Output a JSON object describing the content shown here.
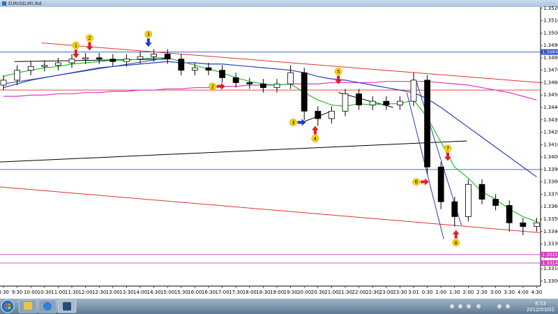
{
  "window": {
    "title": "EURUSD,M5 Bid"
  },
  "chart_data": {
    "type": "candlestick",
    "categories": [
      "8:30",
      "9:30",
      "10:00",
      "10:30",
      "11:00",
      "11:30",
      "12:00",
      "12:30",
      "13:00",
      "13:30",
      "14:00",
      "14:30",
      "15:00",
      "15:30",
      "16:00",
      "16:30",
      "17:00",
      "17:30",
      "18:00",
      "18:30",
      "19:00",
      "19:30",
      "20:00",
      "20:30",
      "21:00",
      "21:30",
      "22:00",
      "22:30",
      "23:00",
      "23:30",
      "3:01",
      "0:30",
      "1:00",
      "1:30",
      "2:00",
      "2:30",
      "3:00",
      "3:30",
      "4:00",
      "4:30"
    ],
    "open": [
      1.3458,
      1.3462,
      1.347,
      1.3473,
      1.3474,
      1.3476,
      1.3479,
      1.348,
      1.3479,
      1.3477,
      1.3479,
      1.3481,
      1.3483,
      1.3479,
      1.347,
      1.3472,
      1.347,
      1.3464,
      1.346,
      1.3459,
      1.3456,
      1.3459,
      1.3468,
      1.3437,
      1.3431,
      1.3437,
      1.3451,
      1.3442,
      1.3445,
      1.3442,
      1.3445,
      1.3462,
      1.3392,
      1.3364,
      1.3352,
      1.3378,
      1.3366,
      1.3361,
      1.3347,
      1.3344
    ],
    "high": [
      1.3466,
      1.3474,
      1.3477,
      1.3478,
      1.348,
      1.3483,
      1.3484,
      1.3484,
      1.3483,
      1.3483,
      1.3485,
      1.3487,
      1.3487,
      1.3483,
      1.3476,
      1.3476,
      1.3474,
      1.3468,
      1.3464,
      1.3463,
      1.3463,
      1.3474,
      1.3472,
      1.3441,
      1.3441,
      1.3455,
      1.3455,
      1.3449,
      1.3449,
      1.3449,
      1.3468,
      1.3466,
      1.3396,
      1.3368,
      1.3382,
      1.3382,
      1.337,
      1.3365,
      1.3351,
      1.3351
    ],
    "low": [
      1.3454,
      1.3458,
      1.3466,
      1.3469,
      1.347,
      1.3472,
      1.3475,
      1.3475,
      1.3473,
      1.3473,
      1.3475,
      1.3477,
      1.3475,
      1.3466,
      1.3466,
      1.3466,
      1.346,
      1.3456,
      1.3455,
      1.3452,
      1.3452,
      1.3455,
      1.343,
      1.3425,
      1.3427,
      1.3433,
      1.3438,
      1.3438,
      1.3438,
      1.3438,
      1.3441,
      1.3386,
      1.3358,
      1.3344,
      1.3348,
      1.3362,
      1.3357,
      1.334,
      1.3337,
      1.334
    ],
    "close": [
      1.3462,
      1.347,
      1.3473,
      1.3474,
      1.3476,
      1.3479,
      1.348,
      1.3479,
      1.3477,
      1.3479,
      1.3481,
      1.3483,
      1.3479,
      1.347,
      1.3472,
      1.347,
      1.3464,
      1.346,
      1.3459,
      1.3456,
      1.3459,
      1.3468,
      1.3437,
      1.3431,
      1.3437,
      1.3451,
      1.3442,
      1.3445,
      1.3442,
      1.3445,
      1.3462,
      1.3392,
      1.3364,
      1.3352,
      1.3378,
      1.3366,
      1.3361,
      1.3347,
      1.3344,
      1.3347
    ],
    "series": [
      {
        "color": "#d63cc0",
        "values": [
          1.3449,
          1.3449,
          1.345,
          1.345,
          1.3451,
          1.3451,
          1.3452,
          1.3452,
          1.3453,
          1.3453,
          1.3454,
          1.3454,
          1.3455,
          1.3455,
          1.3456,
          1.3456,
          1.3457,
          1.3457,
          1.3458,
          1.3458,
          1.3458,
          1.3459,
          1.3459,
          1.3459,
          1.346,
          1.346,
          1.346,
          1.346,
          1.3461,
          1.3461,
          1.3461,
          1.3461,
          1.346,
          1.3459,
          1.3458,
          1.3456,
          1.3454,
          1.3452,
          1.3449,
          1.3446
        ]
      },
      {
        "color": "#2a3fb8",
        "values": [
          1.3456,
          1.3459,
          1.3462,
          1.3464,
          1.3466,
          1.3468,
          1.347,
          1.3472,
          1.3473,
          1.3474,
          1.3475,
          1.3476,
          1.3477,
          1.3476,
          1.3476,
          1.3475,
          1.3475,
          1.3474,
          1.3473,
          1.3472,
          1.3471,
          1.347,
          1.3468,
          1.3465,
          1.3463,
          1.3462,
          1.346,
          1.3458,
          1.3456,
          1.3454,
          1.3452,
          1.3447,
          1.344,
          1.3432,
          1.3424,
          1.3416,
          1.3408,
          1.34,
          1.3392,
          1.3384
        ]
      },
      {
        "color": "#22c22a",
        "values": [
          1.3465,
          1.3468,
          1.347,
          1.3472,
          1.3473,
          1.3475,
          1.3476,
          1.3477,
          1.3478,
          1.3478,
          1.3479,
          1.348,
          1.348,
          1.3477,
          1.3474,
          1.3471,
          1.3468,
          1.3464,
          1.3461,
          1.3459,
          1.3458,
          1.3459,
          1.3452,
          1.3446,
          1.3442,
          1.3441,
          1.3443,
          1.3442,
          1.3443,
          1.3443,
          1.3446,
          1.3432,
          1.3412,
          1.3392,
          1.3383,
          1.3372,
          1.3366,
          1.3358,
          1.3352,
          1.3348
        ]
      }
    ],
    "hlines": [
      {
        "value": 1.34847,
        "label": "1.34847",
        "color": "#3050c8"
      },
      {
        "value": 1.3454,
        "color": "#e03030"
      },
      {
        "value": 1.339,
        "color": "#3050c8"
      },
      {
        "value": 1.33214,
        "label": "1.33214",
        "color": "#d63cc0"
      },
      {
        "value": 1.33146,
        "label": "1.33146",
        "color": "#d63cc0"
      }
    ],
    "trendlines": [
      {
        "x": [
          2.8,
          39.3
        ],
        "y": [
          1.3492,
          1.346
        ],
        "color": "#e03030"
      },
      {
        "x": [
          -0.3,
          39.3
        ],
        "y": [
          1.3376,
          1.3339
        ],
        "color": "#e03030"
      },
      {
        "x": [
          -0.3,
          33.9
        ],
        "y": [
          1.3396,
          1.3413
        ],
        "color": "#000000"
      },
      {
        "x": [
          0.8,
          12.0
        ],
        "y": [
          1.3477,
          1.3479
        ],
        "color": "#000000"
      },
      {
        "x": [
          0.0,
          12.0
        ],
        "y": [
          1.3459,
          1.348
        ],
        "color": "#2a3fb8"
      },
      {
        "x": [
          24.5,
          28.5
        ],
        "y": [
          1.3452,
          1.344
        ],
        "color": "#000000"
      },
      {
        "x": [
          21.6,
          24.0
        ],
        "y": [
          1.3427,
          1.3437
        ],
        "color": "#000000"
      },
      {
        "x": [
          29.5,
          32.2
        ],
        "y": [
          1.3452,
          1.3334
        ],
        "color": "#2a3fb8"
      },
      {
        "x": [
          30.2,
          33.5
        ],
        "y": [
          1.3461,
          1.3345
        ],
        "color": "#2a3fb8"
      }
    ],
    "markers": [
      {
        "label": "1",
        "x": 5.3,
        "y": 1.349,
        "dir": "down",
        "color": "#e02020"
      },
      {
        "label": "2",
        "x": 6.3,
        "y": 1.3496,
        "dir": "down",
        "color": "#e02020"
      },
      {
        "label": "3",
        "x": 10.6,
        "y": 1.3499,
        "dir": "down",
        "color": "#1c3ad0"
      },
      {
        "label": "2",
        "x": 15.3,
        "y": 1.3457,
        "dir": "right",
        "color": "#e02020"
      },
      {
        "label": "3",
        "x": 21.2,
        "y": 1.3428,
        "dir": "right",
        "color": "#1c3ad0"
      },
      {
        "label": "4",
        "x": 22.8,
        "y": 1.3415,
        "dir": "up",
        "color": "#e02020"
      },
      {
        "label": "5",
        "x": 24.5,
        "y": 1.3469,
        "dir": "down",
        "color": "#e02020"
      },
      {
        "label": "6",
        "x": 30.2,
        "y": 1.338,
        "dir": "right",
        "color": "#e02020"
      },
      {
        "label": "7",
        "x": 32.5,
        "y": 1.3407,
        "dir": "down",
        "color": "#e02020"
      },
      {
        "label": "8",
        "x": 33.1,
        "y": 1.3331,
        "dir": "up",
        "color": "#e02020"
      }
    ],
    "ylim": [
      1.3296,
      1.3521
    ],
    "yticks": [
      {
        "value": 1.33,
        "label": "1.3300"
      },
      {
        "value": 1.331,
        "label": "1.3310"
      },
      {
        "value": 1.332,
        "label": "1.3320"
      },
      {
        "value": 1.333,
        "label": "1.3330"
      },
      {
        "value": 1.334,
        "label": "1.3340"
      },
      {
        "value": 1.335,
        "label": "1.3350"
      },
      {
        "value": 1.336,
        "label": "1.3360"
      },
      {
        "value": 1.337,
        "label": "1.3370"
      },
      {
        "value": 1.338,
        "label": "1.3380"
      },
      {
        "value": 1.339,
        "label": "1.3390"
      },
      {
        "value": 1.34,
        "label": "1.3400"
      },
      {
        "value": 1.341,
        "label": "1.3410"
      },
      {
        "value": 1.342,
        "label": "1.3420"
      },
      {
        "value": 1.343,
        "label": "1.3430"
      },
      {
        "value": 1.344,
        "label": "1.3440"
      },
      {
        "value": 1.345,
        "label": "1.3450"
      },
      {
        "value": 1.346,
        "label": "1.3460"
      },
      {
        "value": 1.347,
        "label": "1.3470"
      },
      {
        "value": 1.348,
        "label": "1.3480"
      },
      {
        "value": 1.349,
        "label": "1.3490"
      },
      {
        "value": 1.35,
        "label": "1.3500"
      },
      {
        "value": 1.351,
        "label": "1.3510"
      },
      {
        "value": 1.352,
        "label": "1.3520"
      }
    ],
    "up_color": "#ffffff",
    "down_color": "#000000"
  },
  "taskbar": {
    "time": "8:53",
    "date": "2012/03/01"
  }
}
